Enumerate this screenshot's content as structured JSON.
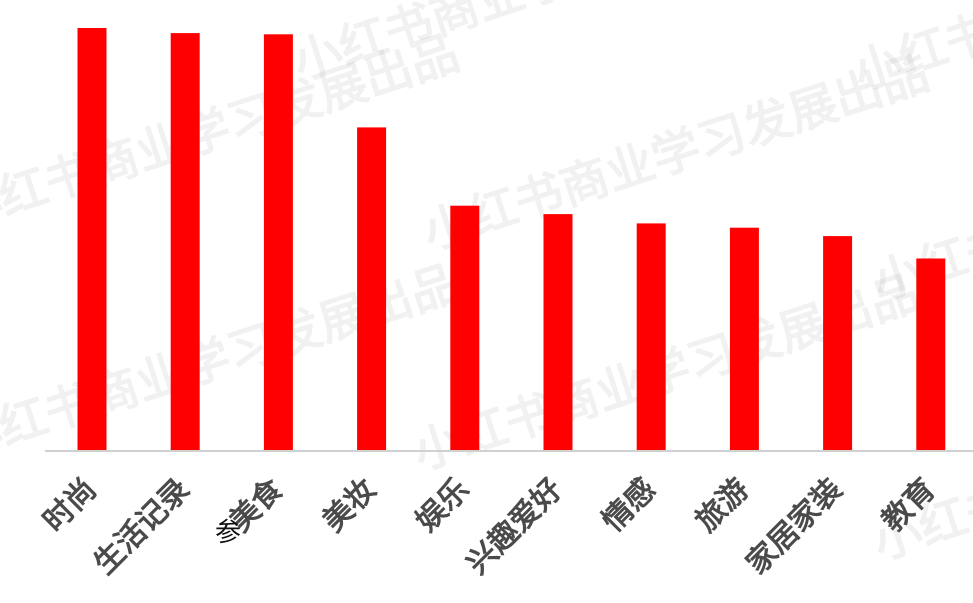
{
  "chart_data": {
    "type": "bar",
    "categories": [
      "时尚",
      "生活记录",
      "美食",
      "美妆",
      "娱乐",
      "兴趣爱好",
      "情感",
      "旅游",
      "家居家装",
      "教育"
    ],
    "values": [
      100,
      98.8,
      98.5,
      76.5,
      58,
      56,
      53.8,
      52.8,
      50.8,
      45.5
    ],
    "ylim": [
      0,
      100
    ],
    "grid": false,
    "legend": "none",
    "colors": {
      "bar": "#ff0000",
      "axis": "#d0d0d0",
      "label": "#4a4a4a"
    }
  },
  "overlay_text": "参",
  "watermark_text": "小红书商业学习发展出品"
}
